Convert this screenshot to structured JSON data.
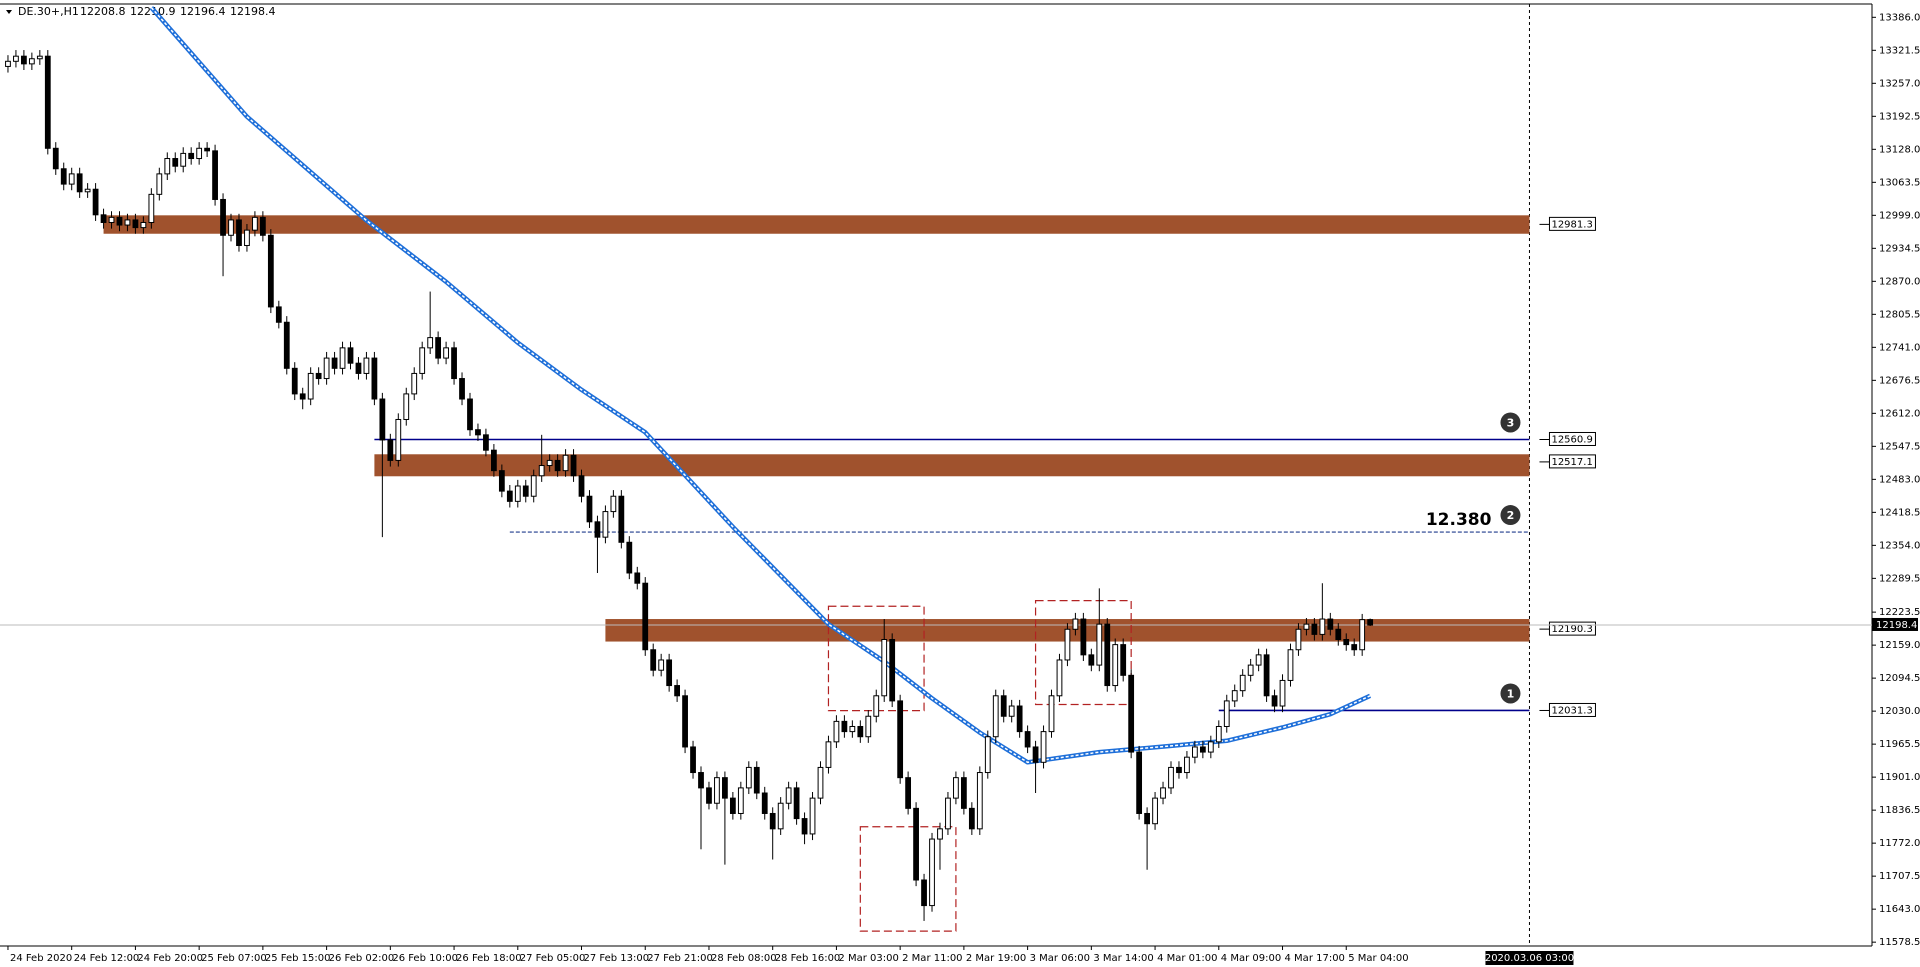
{
  "chart_data": {
    "type": "candlestick",
    "symbol": "DE.30+,H1",
    "xlim": [
      -1,
      234
    ],
    "ylim": [
      11571,
      13412
    ],
    "yticks": [
      {
        "value": 13386.0,
        "label": "13386.0"
      },
      13321.5,
      {
        "value": 13257.0,
        "label": "13257.0"
      },
      13192.5,
      {
        "value": 13128.0,
        "label": "13128.0"
      },
      13063.5,
      {
        "value": 12999.0,
        "label": "12999.0"
      },
      12934.5,
      {
        "value": 12870.0,
        "label": "12870.0"
      },
      12805.5,
      {
        "value": 12741.0,
        "label": "12741.0"
      },
      12676.5,
      {
        "value": 12612.0,
        "label": "12612.0"
      },
      12547.5,
      {
        "value": 12483.0,
        "label": "12483.0"
      },
      12418.5,
      {
        "value": 12354.0,
        "label": "12354.0"
      },
      12289.5,
      12223.5,
      {
        "value": 12159.0,
        "label": "12159.0"
      },
      12094.5,
      {
        "value": 12030.0,
        "label": "12030.0"
      },
      11965.5,
      {
        "value": 11901.0,
        "label": "11901.0"
      },
      11836.5,
      {
        "value": 11772.0,
        "label": "11772.0"
      },
      11707.5,
      {
        "value": 11643.0,
        "label": "11643.0"
      },
      11578.5
    ],
    "categories": [
      "24 Feb 2020",
      null,
      null,
      null,
      null,
      null,
      null,
      null,
      "24 Feb 12:00",
      null,
      null,
      null,
      null,
      null,
      null,
      null,
      "24 Feb 20:00",
      null,
      null,
      null,
      null,
      null,
      null,
      null,
      "25 Feb 07:00",
      null,
      null,
      null,
      null,
      null,
      null,
      null,
      "25 Feb 15:00",
      null,
      null,
      null,
      null,
      null,
      null,
      null,
      "26 Feb 02:00",
      null,
      null,
      null,
      null,
      null,
      null,
      null,
      "26 Feb 10:00",
      null,
      null,
      null,
      null,
      null,
      null,
      null,
      "26 Feb 18:00",
      null,
      null,
      null,
      null,
      null,
      null,
      null,
      "27 Feb 05:00",
      null,
      null,
      null,
      null,
      null,
      null,
      null,
      "27 Feb 13:00",
      null,
      null,
      null,
      null,
      null,
      null,
      null,
      "27 Feb 21:00",
      null,
      null,
      null,
      null,
      null,
      null,
      null,
      "28 Feb 08:00",
      null,
      null,
      null,
      null,
      null,
      null,
      null,
      "28 Feb 16:00",
      null,
      null,
      null,
      null,
      null,
      null,
      null,
      "2 Mar 03:00",
      null,
      null,
      null,
      null,
      null,
      null,
      null,
      "2 Mar 11:00",
      null,
      null,
      null,
      null,
      null,
      null,
      null,
      "2 Mar 19:00",
      null,
      null,
      null,
      null,
      null,
      null,
      null,
      "3 Mar 06:00",
      null,
      null,
      null,
      null,
      null,
      null,
      null,
      "3 Mar 14:00",
      null,
      null,
      null,
      null,
      null,
      null,
      null,
      "4 Mar 01:00",
      null,
      null,
      null,
      null,
      null,
      null,
      null,
      "4 Mar 09:00",
      null,
      null,
      null,
      null,
      null,
      null,
      null,
      "4 Mar 17:00",
      null,
      null,
      null,
      null,
      null,
      null,
      null,
      "5 Mar 04:00",
      null,
      null,
      null
    ],
    "ohlc": [
      [
        13290,
        13312,
        13278,
        13300
      ],
      [
        13300,
        13322,
        13288,
        13310
      ],
      [
        13310,
        13322,
        13283,
        13295
      ],
      [
        13295,
        13317,
        13283,
        13305
      ],
      [
        13305,
        13322,
        13293,
        13310
      ],
      [
        13310,
        13322,
        13118,
        13130
      ],
      [
        13130,
        13142,
        13078,
        13090
      ],
      [
        13090,
        13102,
        13048,
        13060
      ],
      [
        13060,
        13092,
        13048,
        13080
      ],
      [
        13080,
        13092,
        13033,
        13045
      ],
      [
        13045,
        13062,
        13033,
        13050
      ],
      [
        13050,
        13062,
        12988,
        13000
      ],
      [
        13000,
        13012,
        12973,
        12985
      ],
      [
        12985,
        13007,
        12973,
        12995
      ],
      [
        12995,
        13007,
        12968,
        12980
      ],
      [
        12980,
        13002,
        12968,
        12990
      ],
      [
        12990,
        13002,
        12963,
        12975
      ],
      [
        12975,
        12997,
        12963,
        12985
      ],
      [
        12985,
        13052,
        12973,
        13040
      ],
      [
        13040,
        13092,
        13028,
        13080
      ],
      [
        13080,
        13122,
        13068,
        13110
      ],
      [
        13110,
        13122,
        13083,
        13095
      ],
      [
        13095,
        13132,
        13083,
        13120
      ],
      [
        13120,
        13132,
        13098,
        13110
      ],
      [
        13110,
        13142,
        13098,
        13130
      ],
      [
        13130,
        13142,
        13113,
        13125
      ],
      [
        13125,
        13137,
        13018,
        13030
      ],
      [
        13030,
        13042,
        12880,
        12960
      ],
      [
        12960,
        13002,
        12948,
        12990
      ],
      [
        12990,
        13002,
        12928,
        12940
      ],
      [
        12940,
        12982,
        12928,
        12970
      ],
      [
        12970,
        13007,
        12958,
        12995
      ],
      [
        12995,
        13007,
        12948,
        12960
      ],
      [
        12960,
        12972,
        12808,
        12820
      ],
      [
        12820,
        12832,
        12778,
        12790
      ],
      [
        12790,
        12802,
        12688,
        12700
      ],
      [
        12700,
        12712,
        12638,
        12650
      ],
      [
        12650,
        12662,
        12620,
        12640
      ],
      [
        12640,
        12702,
        12628,
        12690
      ],
      [
        12690,
        12702,
        12668,
        12680
      ],
      [
        12680,
        12732,
        12668,
        12720
      ],
      [
        12720,
        12732,
        12688,
        12700
      ],
      [
        12700,
        12752,
        12688,
        12740
      ],
      [
        12740,
        12752,
        12698,
        12710
      ],
      [
        12710,
        12722,
        12678,
        12690
      ],
      [
        12690,
        12732,
        12678,
        12720
      ],
      [
        12720,
        12732,
        12628,
        12640
      ],
      [
        12640,
        12652,
        12370,
        12560
      ],
      [
        12560,
        12572,
        12508,
        12520
      ],
      [
        12520,
        12612,
        12508,
        12600
      ],
      [
        12600,
        12662,
        12588,
        12650
      ],
      [
        12650,
        12702,
        12638,
        12690
      ],
      [
        12690,
        12752,
        12678,
        12740
      ],
      [
        12740,
        12850,
        12728,
        12760
      ],
      [
        12760,
        12772,
        12708,
        12720
      ],
      [
        12720,
        12752,
        12708,
        12740
      ],
      [
        12740,
        12752,
        12668,
        12680
      ],
      [
        12680,
        12692,
        12628,
        12640
      ],
      [
        12640,
        12652,
        12568,
        12580
      ],
      [
        12580,
        12592,
        12558,
        12570
      ],
      [
        12570,
        12582,
        12528,
        12540
      ],
      [
        12540,
        12552,
        12488,
        12500
      ],
      [
        12500,
        12512,
        12448,
        12460
      ],
      [
        12460,
        12472,
        12428,
        12440
      ],
      [
        12440,
        12482,
        12428,
        12470
      ],
      [
        12470,
        12482,
        12438,
        12450
      ],
      [
        12450,
        12502,
        12438,
        12490
      ],
      [
        12490,
        12570,
        12478,
        12510
      ],
      [
        12510,
        12532,
        12498,
        12520
      ],
      [
        12520,
        12532,
        12488,
        12500
      ],
      [
        12500,
        12542,
        12488,
        12530
      ],
      [
        12530,
        12542,
        12478,
        12490
      ],
      [
        12490,
        12502,
        12438,
        12450
      ],
      [
        12450,
        12462,
        12388,
        12400
      ],
      [
        12400,
        12412,
        12300,
        12370
      ],
      [
        12370,
        12432,
        12358,
        12420
      ],
      [
        12420,
        12462,
        12408,
        12450
      ],
      [
        12450,
        12462,
        12348,
        12360
      ],
      [
        12360,
        12372,
        12288,
        12300
      ],
      [
        12300,
        12312,
        12268,
        12280
      ],
      [
        12280,
        12292,
        12138,
        12150
      ],
      [
        12150,
        12162,
        12098,
        12110
      ],
      [
        12110,
        12142,
        12098,
        12130
      ],
      [
        12130,
        12142,
        12068,
        12080
      ],
      [
        12080,
        12092,
        12048,
        12060
      ],
      [
        12060,
        12072,
        11948,
        11960
      ],
      [
        11960,
        11972,
        11898,
        11910
      ],
      [
        11910,
        11922,
        11760,
        11880
      ],
      [
        11880,
        11892,
        11838,
        11850
      ],
      [
        11850,
        11912,
        11838,
        11900
      ],
      [
        11900,
        11912,
        11730,
        11860
      ],
      [
        11860,
        11872,
        11818,
        11830
      ],
      [
        11830,
        11892,
        11818,
        11880
      ],
      [
        11880,
        11932,
        11868,
        11920
      ],
      [
        11920,
        11932,
        11858,
        11870
      ],
      [
        11870,
        11882,
        11818,
        11830
      ],
      [
        11830,
        11842,
        11740,
        11800
      ],
      [
        11800,
        11862,
        11788,
        11850
      ],
      [
        11850,
        11892,
        11838,
        11880
      ],
      [
        11880,
        11892,
        11808,
        11820
      ],
      [
        11820,
        11832,
        11770,
        11790
      ],
      [
        11790,
        11872,
        11778,
        11860
      ],
      [
        11860,
        11932,
        11848,
        11920
      ],
      [
        11920,
        11982,
        11908,
        11970
      ],
      [
        11970,
        12022,
        11958,
        12010
      ],
      [
        12010,
        12022,
        11978,
        11990
      ],
      [
        11990,
        12012,
        11978,
        12000
      ],
      [
        12000,
        12012,
        11968,
        11980
      ],
      [
        11980,
        12032,
        11968,
        12020
      ],
      [
        12020,
        12072,
        12008,
        12060
      ],
      [
        12060,
        12210,
        12048,
        12170
      ],
      [
        12170,
        12182,
        12038,
        12050
      ],
      [
        12050,
        12062,
        11888,
        11900
      ],
      [
        11900,
        11912,
        11828,
        11840
      ],
      [
        11840,
        11852,
        11688,
        11700
      ],
      [
        11700,
        11712,
        11620,
        11650
      ],
      [
        11650,
        11792,
        11638,
        11780
      ],
      [
        11780,
        11812,
        11720,
        11800
      ],
      [
        11800,
        11872,
        11788,
        11860
      ],
      [
        11860,
        11912,
        11848,
        11900
      ],
      [
        11900,
        11912,
        11828,
        11840
      ],
      [
        11840,
        11852,
        11788,
        11800
      ],
      [
        11800,
        11922,
        11788,
        11910
      ],
      [
        11910,
        11992,
        11898,
        11980
      ],
      [
        11980,
        12072,
        11968,
        12060
      ],
      [
        12060,
        12072,
        12008,
        12020
      ],
      [
        12020,
        12052,
        12008,
        12040
      ],
      [
        12040,
        12052,
        11978,
        11990
      ],
      [
        11990,
        12002,
        11948,
        11960
      ],
      [
        11960,
        11972,
        11870,
        11930
      ],
      [
        11930,
        12002,
        11918,
        11990
      ],
      [
        11990,
        12072,
        11978,
        12060
      ],
      [
        12060,
        12142,
        12048,
        12130
      ],
      [
        12130,
        12202,
        12118,
        12190
      ],
      [
        12190,
        12222,
        12178,
        12210
      ],
      [
        12210,
        12222,
        12128,
        12140
      ],
      [
        12140,
        12152,
        12108,
        12120
      ],
      [
        12120,
        12270,
        12108,
        12200
      ],
      [
        12200,
        12212,
        12068,
        12080
      ],
      [
        12080,
        12172,
        12068,
        12160
      ],
      [
        12160,
        12172,
        12088,
        12100
      ],
      [
        12100,
        12112,
        11938,
        11950
      ],
      [
        11950,
        11962,
        11818,
        11830
      ],
      [
        11830,
        11842,
        11720,
        11810
      ],
      [
        11810,
        11872,
        11798,
        11860
      ],
      [
        11860,
        11892,
        11848,
        11880
      ],
      [
        11880,
        11932,
        11868,
        11920
      ],
      [
        11920,
        11932,
        11898,
        11910
      ],
      [
        11910,
        11952,
        11898,
        11940
      ],
      [
        11940,
        11972,
        11928,
        11960
      ],
      [
        11960,
        11972,
        11938,
        11950
      ],
      [
        11950,
        11982,
        11938,
        11970
      ],
      [
        11970,
        12012,
        11958,
        12000
      ],
      [
        12000,
        12062,
        11988,
        12050
      ],
      [
        12050,
        12082,
        12038,
        12070
      ],
      [
        12070,
        12112,
        12058,
        12100
      ],
      [
        12100,
        12132,
        12088,
        12120
      ],
      [
        12120,
        12152,
        12108,
        12140
      ],
      [
        12140,
        12152,
        12048,
        12060
      ],
      [
        12060,
        12072,
        12028,
        12040
      ],
      [
        12040,
        12102,
        12028,
        12090
      ],
      [
        12090,
        12162,
        12078,
        12150
      ],
      [
        12150,
        12202,
        12138,
        12190
      ],
      [
        12190,
        12212,
        12178,
        12200
      ],
      [
        12200,
        12212,
        12168,
        12180
      ],
      [
        12180,
        12280,
        12168,
        12210
      ],
      [
        12210,
        12222,
        12178,
        12190
      ],
      [
        12190,
        12202,
        12158,
        12170
      ],
      [
        12170,
        12182,
        12148,
        12160
      ],
      [
        12160,
        12172,
        12138,
        12150
      ],
      [
        12150,
        12220,
        12138,
        12208.8
      ],
      [
        12208.8,
        12210.9,
        12196.4,
        12198.4
      ]
    ],
    "ma": {
      "color": "#1e6fd9",
      "x": [
        18,
        30,
        45,
        55,
        64,
        72,
        80,
        91,
        103,
        110,
        116,
        122,
        128,
        137,
        146,
        153,
        160,
        166,
        171
      ],
      "values": [
        13405,
        13192,
        12989,
        12869,
        12750,
        12658,
        12575,
        12390,
        12200,
        12127,
        12055,
        11988,
        11930,
        11950,
        11962,
        11972,
        11998,
        12024,
        12060
      ]
    },
    "levels": [
      {
        "kind": "band",
        "value": 12981.3,
        "label": "12981.3",
        "low": 12963,
        "high": 12999,
        "from": 12,
        "color": "#a0522d"
      },
      {
        "kind": "line",
        "value": 12560.9,
        "label": "12560.9",
        "from": 46,
        "color": "#00008b",
        "marker": "3"
      },
      {
        "kind": "band",
        "value": 12517.1,
        "label": "12517.1",
        "low": 12489,
        "high": 12532,
        "from": 46,
        "color": "#a0522d"
      },
      {
        "kind": "dashed",
        "value": 12380,
        "label": "12.380",
        "from": 63,
        "color": "#1f3b8c",
        "marker": "2"
      },
      {
        "kind": "band",
        "value": 12190.3,
        "label": "12190.3",
        "low": 12166,
        "high": 12210,
        "from": 75,
        "color": "#a0522d"
      },
      {
        "kind": "line",
        "value": 12031.3,
        "label": "12031.3",
        "from": 152,
        "color": "#00008b",
        "marker": "1"
      }
    ],
    "boxes": [
      {
        "x": [
          103,
          115
        ],
        "y": [
          12031,
          12235
        ]
      },
      {
        "x": [
          107,
          119
        ],
        "y": [
          11600,
          11804
        ]
      },
      {
        "x": [
          129,
          141
        ],
        "y": [
          12043,
          12246
        ]
      }
    ],
    "box_color": "#b22222",
    "cursor": {
      "x": 191,
      "label": "2020.03.06 03:00"
    }
  }
}
